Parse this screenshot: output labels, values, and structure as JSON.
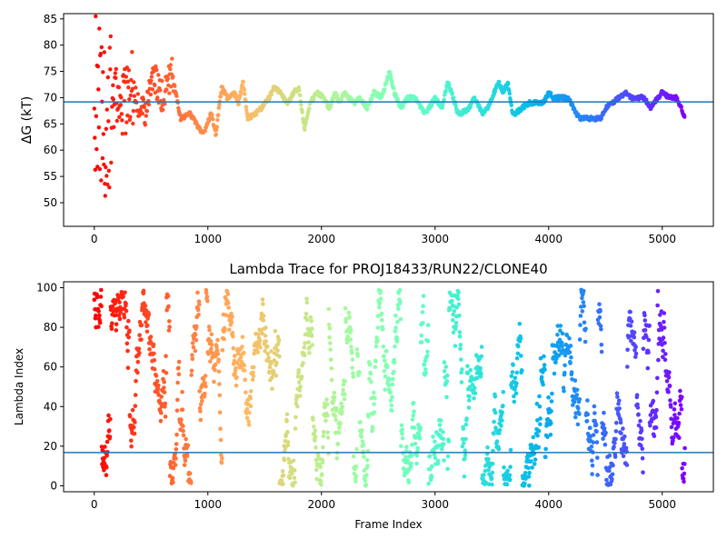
{
  "chart_data": [
    {
      "type": "scatter",
      "title": "",
      "xlabel": "",
      "ylabel": "ΔG (kT)",
      "xlim": [
        -270,
        5450
      ],
      "ylim": [
        45.5,
        86
      ],
      "xticks": [
        0,
        1000,
        2000,
        3000,
        4000,
        5000
      ],
      "yticks": [
        50,
        55,
        60,
        65,
        70,
        75,
        80,
        85
      ],
      "hline": 69.2,
      "hline_color": "#1f77b4",
      "colormap": "rainbow, red at frame 0 to violet at last frame",
      "grid": false,
      "legend": "none",
      "n_frames": 5200,
      "trace_x": [
        0,
        100,
        160,
        250,
        330,
        440,
        520,
        600,
        680,
        760,
        840,
        900,
        960,
        1030,
        1070,
        1120,
        1170,
        1230,
        1270,
        1310,
        1350,
        1420,
        1470,
        1540,
        1580,
        1640,
        1700,
        1760,
        1800,
        1850,
        1900,
        1960,
        2020,
        2070,
        2120,
        2160,
        2200,
        2240,
        2290,
        2340,
        2400,
        2460,
        2530,
        2600,
        2640,
        2700,
        2760,
        2820,
        2880,
        2920,
        3000,
        3060,
        3110,
        3160,
        3200,
        3230,
        3300,
        3340,
        3420,
        3460,
        3520,
        3560,
        3600,
        3640,
        3680,
        3710,
        3760,
        3830,
        3900,
        3950,
        4000,
        4040,
        4100,
        4160,
        4200,
        4240,
        4280,
        4340,
        4400,
        4460,
        4500,
        4560,
        4620,
        4680,
        4720,
        4780,
        4830,
        4870,
        4900,
        4960,
        5000,
        5060,
        5120,
        5170,
        5200
      ],
      "trace_y": [
        72,
        68,
        71,
        69,
        72,
        67,
        74,
        70,
        75,
        66,
        67,
        65,
        63,
        67,
        63,
        72,
        70,
        71,
        69,
        73,
        66,
        67,
        68,
        70,
        72,
        71,
        69,
        71,
        72,
        64,
        69,
        71,
        70,
        68,
        71,
        69,
        71,
        70,
        69,
        70,
        68,
        71,
        70,
        75,
        71,
        68,
        70,
        70,
        68,
        67,
        70,
        68,
        73,
        70,
        67,
        67,
        68,
        70,
        67,
        68,
        71,
        73,
        71,
        73,
        67,
        67,
        68,
        69,
        69,
        69,
        71,
        70,
        70,
        70,
        69,
        67,
        66,
        66,
        66,
        66,
        68,
        69,
        70,
        71,
        70,
        70,
        70,
        69,
        68,
        70,
        71,
        70,
        70,
        68,
        66
      ]
    },
    {
      "type": "scatter",
      "title": "Lambda Trace for PROJ18433/RUN22/CLONE40",
      "xlabel": "Frame Index",
      "ylabel": "Lambda Index",
      "xlim": [
        -270,
        5450
      ],
      "ylim": [
        -3,
        103
      ],
      "xticks": [
        0,
        1000,
        2000,
        3000,
        4000,
        5000
      ],
      "yticks": [
        0,
        20,
        40,
        60,
        80,
        100
      ],
      "hline": 16.8,
      "hline_color": "#1f77b4",
      "colormap": "rainbow, red at frame 0 to violet at last frame",
      "grid": false,
      "legend": "none",
      "n_frames": 5200,
      "lambda_range": [
        0,
        99
      ]
    }
  ]
}
